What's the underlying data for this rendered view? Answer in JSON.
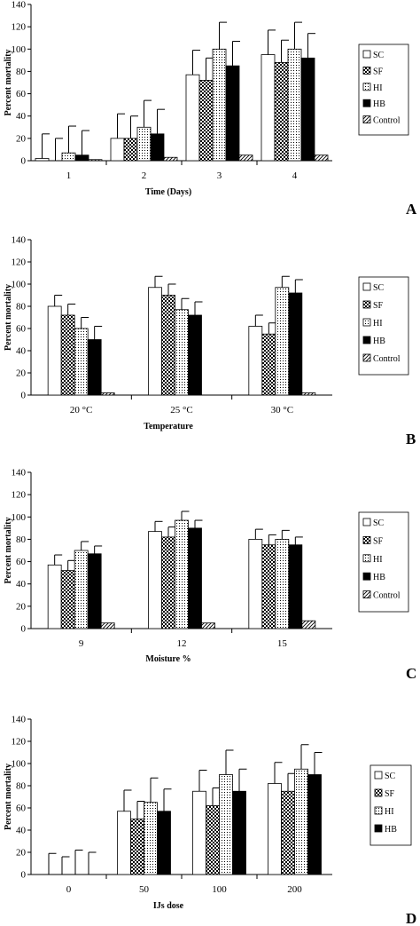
{
  "chart_data": [
    {
      "type": "bar",
      "panel_label": "A",
      "xlabel": "Time (Days)",
      "ylabel": "Percent mortality",
      "ylim": [
        0,
        140
      ],
      "yticks": [
        0,
        20,
        40,
        60,
        80,
        100,
        120,
        140
      ],
      "categories": [
        "1",
        "2",
        "3",
        "4"
      ],
      "legend_position": "right",
      "series": [
        {
          "name": "SC",
          "values": [
            2,
            20,
            77,
            95
          ],
          "errors": [
            22,
            22,
            22,
            22
          ]
        },
        {
          "name": "SF",
          "values": [
            0,
            20,
            72,
            88
          ],
          "errors": [
            20,
            20,
            20,
            20
          ]
        },
        {
          "name": "HI",
          "values": [
            7,
            30,
            100,
            100
          ],
          "errors": [
            24,
            24,
            24,
            24
          ]
        },
        {
          "name": "HB",
          "values": [
            5,
            24,
            85,
            92
          ],
          "errors": [
            22,
            22,
            22,
            22
          ]
        },
        {
          "name": "Control",
          "values": [
            1,
            3,
            5,
            5
          ],
          "errors": [
            0,
            0,
            0,
            0
          ]
        }
      ]
    },
    {
      "type": "bar",
      "panel_label": "B",
      "xlabel": "Temperature",
      "ylabel": "Percent mortality",
      "ylim": [
        0,
        140
      ],
      "yticks": [
        0,
        20,
        40,
        60,
        80,
        100,
        120,
        140
      ],
      "categories": [
        "20 °C",
        "25 °C",
        "30 °C"
      ],
      "legend_position": "right",
      "series": [
        {
          "name": "SC",
          "values": [
            80,
            97,
            62
          ],
          "errors": [
            10,
            10,
            10
          ]
        },
        {
          "name": "SF",
          "values": [
            72,
            90,
            55
          ],
          "errors": [
            10,
            10,
            10
          ]
        },
        {
          "name": "HI",
          "values": [
            60,
            77,
            97
          ],
          "errors": [
            10,
            10,
            10
          ]
        },
        {
          "name": "HB",
          "values": [
            50,
            72,
            92
          ],
          "errors": [
            12,
            12,
            12
          ]
        },
        {
          "name": "Control",
          "values": [
            2,
            0,
            2
          ],
          "errors": [
            0,
            0,
            0
          ]
        }
      ]
    },
    {
      "type": "bar",
      "panel_label": "C",
      "xlabel": "Moisture %",
      "ylabel": "Percent mortality",
      "ylim": [
        0,
        140
      ],
      "yticks": [
        0,
        20,
        40,
        60,
        80,
        100,
        120,
        140
      ],
      "categories": [
        "9",
        "12",
        "15"
      ],
      "legend_position": "right",
      "series": [
        {
          "name": "SC",
          "values": [
            57,
            87,
            80
          ],
          "errors": [
            9,
            9,
            9
          ]
        },
        {
          "name": "SF",
          "values": [
            52,
            82,
            75
          ],
          "errors": [
            9,
            9,
            9
          ]
        },
        {
          "name": "HI",
          "values": [
            70,
            97,
            80
          ],
          "errors": [
            8,
            8,
            8
          ]
        },
        {
          "name": "HB",
          "values": [
            67,
            90,
            75
          ],
          "errors": [
            7,
            7,
            7
          ]
        },
        {
          "name": "Control",
          "values": [
            5,
            5,
            7
          ],
          "errors": [
            0,
            0,
            0
          ]
        }
      ]
    },
    {
      "type": "bar",
      "panel_label": "D",
      "xlabel": "IJs dose",
      "ylabel": "Percent mortality",
      "ylim": [
        0,
        140
      ],
      "yticks": [
        0,
        20,
        40,
        60,
        80,
        100,
        120,
        140
      ],
      "categories": [
        "0",
        "50",
        "100",
        "200"
      ],
      "legend_position": "right",
      "series": [
        {
          "name": "SC",
          "values": [
            0,
            57,
            75,
            82
          ],
          "errors": [
            19,
            19,
            19,
            19
          ]
        },
        {
          "name": "SF",
          "values": [
            0,
            50,
            62,
            75
          ],
          "errors": [
            16,
            16,
            16,
            16
          ]
        },
        {
          "name": "HI",
          "values": [
            0,
            65,
            90,
            95
          ],
          "errors": [
            22,
            22,
            22,
            22
          ]
        },
        {
          "name": "HB",
          "values": [
            0,
            57,
            75,
            90
          ],
          "errors": [
            20,
            20,
            20,
            20
          ]
        }
      ]
    }
  ],
  "patterns": {
    "SC": "white",
    "SF": "checker",
    "HI": "dots",
    "HB": "solid-black",
    "Control": "diagonal-hatch"
  }
}
